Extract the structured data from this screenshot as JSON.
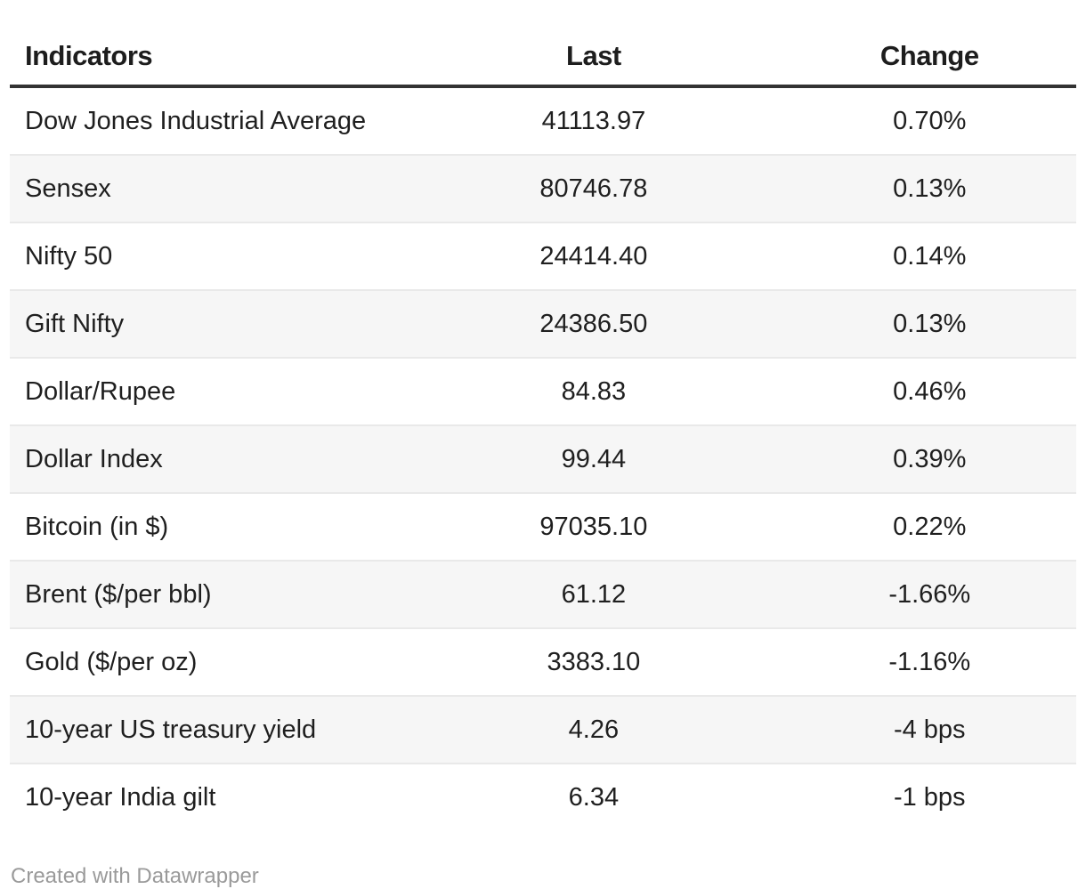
{
  "chart_data": {
    "type": "table",
    "columns": [
      "Indicators",
      "Last",
      "Change"
    ],
    "rows": [
      [
        "Dow Jones Industrial Average",
        "41113.97",
        "0.70%"
      ],
      [
        "Sensex",
        "80746.78",
        "0.13%"
      ],
      [
        "Nifty 50",
        "24414.40",
        "0.14%"
      ],
      [
        "Gift Nifty",
        "24386.50",
        "0.13%"
      ],
      [
        "Dollar/Rupee",
        "84.83",
        "0.46%"
      ],
      [
        "Dollar Index",
        "99.44",
        "0.39%"
      ],
      [
        "Bitcoin (in $)",
        "97035.10",
        "0.22%"
      ],
      [
        "Brent ($/per bbl)",
        "61.12",
        "-1.66%"
      ],
      [
        "Gold ($/per oz)",
        "3383.10",
        "-1.16%"
      ],
      [
        "10-year US treasury yield",
        "4.26",
        "-4 bps"
      ],
      [
        "10-year India gilt",
        "6.34",
        "-1 bps"
      ]
    ],
    "layout": {
      "striped_rows": true,
      "stripe_color": "#f6f6f6",
      "header_rule_color": "#333333",
      "row_border_color": "#e9e9e9",
      "text_color": "#1f1f1f",
      "footer_text_color": "#9a9a9a",
      "column_alignment": [
        "left",
        "center",
        "center"
      ]
    }
  },
  "footer": {
    "attribution": "Created with Datawrapper"
  }
}
